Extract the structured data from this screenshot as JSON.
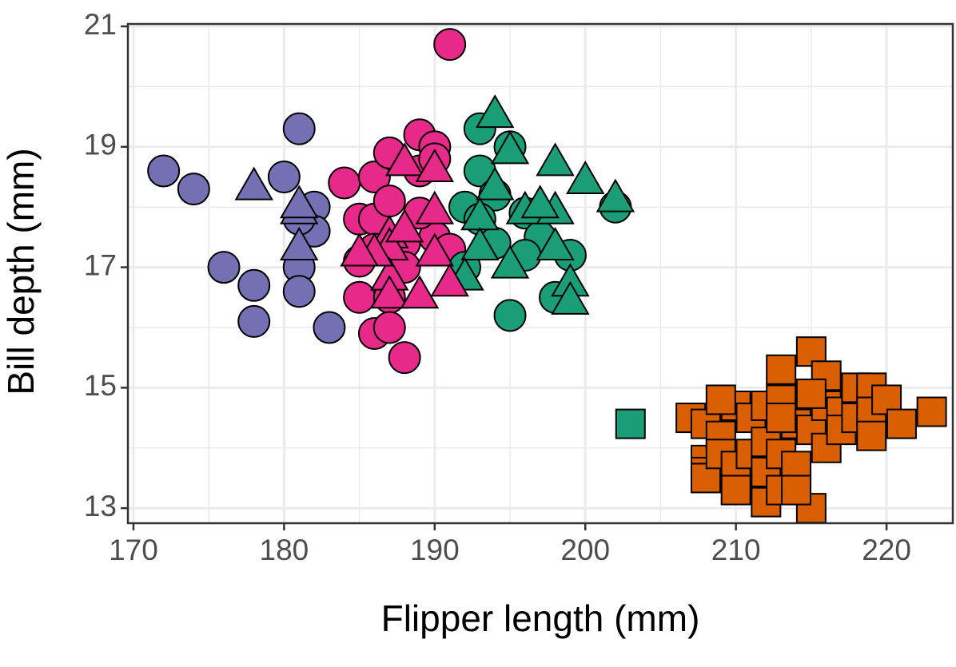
{
  "chart_data": {
    "type": "scatter",
    "xlabel": "Flipper length (mm)",
    "ylabel": "Bill depth (mm)",
    "xlim": [
      169.63,
      224.4
    ],
    "ylim": [
      12.75,
      21.04
    ],
    "xticks": [
      170,
      180,
      190,
      200,
      210,
      220
    ],
    "yticks": [
      13,
      15,
      17,
      19,
      21
    ],
    "x_minor_ticks": [
      175,
      185,
      195,
      205,
      215
    ],
    "y_minor_ticks": [
      14,
      16,
      18,
      20
    ],
    "grid": true,
    "series": [
      {
        "color": "#7570b3",
        "shape": "circle",
        "x": [
          172,
          174,
          176,
          178,
          178,
          180,
          181,
          181,
          181,
          182,
          182,
          183,
          181
        ],
        "y": [
          18.6,
          18.3,
          17.0,
          16.7,
          16.1,
          18.5,
          19.3,
          17.0,
          16.6,
          18.0,
          17.6,
          16.0,
          17.8
        ]
      },
      {
        "color": "#7570b3",
        "shape": "triangle",
        "x": [
          178,
          181,
          181,
          181
        ],
        "y": [
          18.3,
          17.9,
          17.3,
          18.0
        ]
      },
      {
        "color": "#e7298a",
        "shape": "circle",
        "x": [
          191,
          184,
          185,
          185,
          185,
          186,
          186,
          186,
          187,
          187,
          187,
          187,
          188,
          188,
          189,
          189,
          190,
          190,
          190,
          188,
          186,
          189,
          191
        ],
        "y": [
          20.7,
          18.4,
          17.8,
          17.1,
          16.5,
          18.5,
          17.8,
          15.9,
          18.1,
          18.9,
          16.5,
          16.0,
          15.5,
          17.4,
          19.2,
          18.6,
          19.0,
          18.8,
          17.5,
          17.0,
          17.3,
          17.9,
          17.3
        ]
      },
      {
        "color": "#1b9e77",
        "shape": "circle",
        "x": [
          193,
          195,
          193,
          194,
          192,
          196,
          197,
          199,
          198,
          195,
          202,
          192,
          196,
          193,
          194
        ],
        "y": [
          19.3,
          19.0,
          18.6,
          18.2,
          18.0,
          17.9,
          17.5,
          17.2,
          16.5,
          16.2,
          18.0,
          17.0,
          17.2,
          17.8,
          17.4
        ]
      },
      {
        "color": "#1b9e77",
        "shape": "triangle",
        "x": [
          194,
          195,
          194,
          196,
          198,
          200,
          202,
          198,
          193,
          193,
          195,
          198,
          199,
          199,
          192,
          197
        ],
        "y": [
          19.5,
          18.9,
          18.3,
          17.9,
          18.7,
          18.4,
          18.1,
          17.9,
          17.8,
          17.3,
          17.0,
          17.3,
          16.7,
          16.4,
          16.8,
          18.0
        ]
      },
      {
        "color": "#e7298a",
        "shape": "triangle",
        "x": [
          187,
          187,
          187,
          187,
          188,
          190,
          190,
          190,
          189,
          191,
          186,
          185,
          188
        ],
        "y": [
          17.5,
          17.3,
          16.8,
          16.5,
          18.7,
          18.6,
          17.9,
          17.2,
          16.5,
          16.7,
          17.2,
          17.2,
          17.6
        ]
      },
      {
        "color": "#1b9e77",
        "shape": "square",
        "x": [
          203
        ],
        "y": [
          14.4
        ]
      },
      {
        "color": "#d95f02",
        "shape": "square",
        "x": [
          207,
          208,
          208,
          208,
          208,
          209,
          209,
          210,
          210,
          210,
          211,
          211,
          212,
          212,
          212,
          212,
          213,
          213,
          213,
          213,
          214,
          214,
          215,
          215,
          215,
          216,
          216,
          216,
          217,
          217,
          218,
          218,
          219,
          219,
          219,
          220,
          221,
          223,
          209,
          213,
          215,
          214
        ],
        "y": [
          14.5,
          14.4,
          13.8,
          13.6,
          13.5,
          14.2,
          13.9,
          14.7,
          13.7,
          13.3,
          14.5,
          13.9,
          14.7,
          14.1,
          13.6,
          13.1,
          15.3,
          14.8,
          13.9,
          13.3,
          14.4,
          13.7,
          15.6,
          14.3,
          13.0,
          15.2,
          14.7,
          14.0,
          14.6,
          14.3,
          15.0,
          14.5,
          15.0,
          14.6,
          14.2,
          14.8,
          14.4,
          14.6,
          14.8,
          14.5,
          14.9,
          13.3
        ]
      }
    ]
  }
}
